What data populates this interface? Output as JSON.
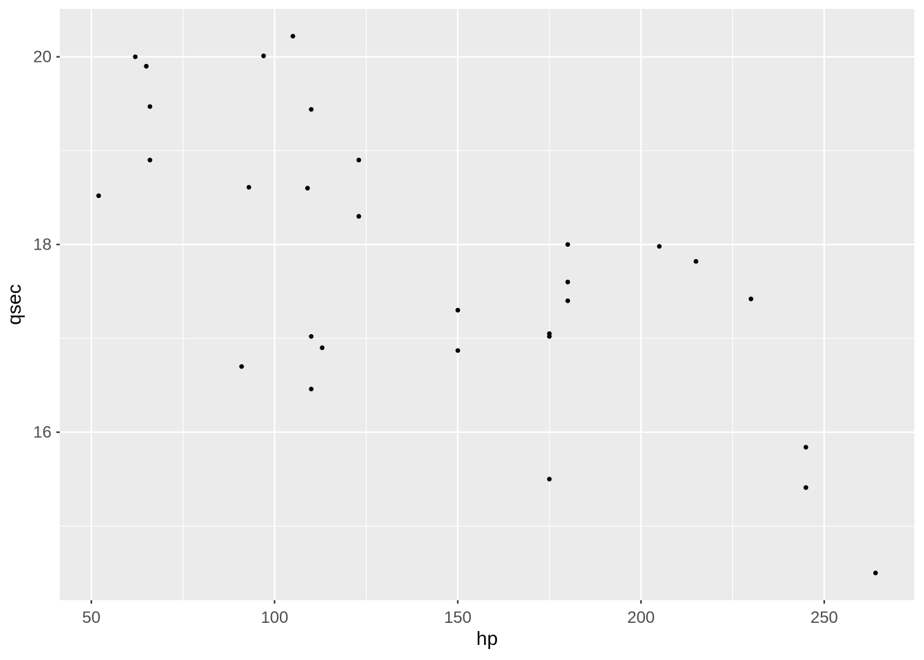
{
  "chart_data": {
    "type": "scatter",
    "title": "",
    "xlabel": "hp",
    "ylabel": "qsec",
    "x_ticks": [
      50,
      100,
      150,
      200,
      250
    ],
    "y_ticks": [
      16,
      18,
      20
    ],
    "x_minor_ticks": [
      75,
      125,
      175,
      225
    ],
    "y_minor_ticks": [
      15,
      17,
      19
    ],
    "xlim": [
      41.4,
      274.6
    ],
    "ylim": [
      14.21,
      20.51
    ],
    "grid": "major-and-minor",
    "legend_position": "none",
    "colors": {
      "panel_background": "#EBEBEB",
      "grid": "#FFFFFF",
      "point": "#000000",
      "tick_mark": "#333333",
      "tick_label": "#4D4D4D",
      "axis_title": "#000000",
      "outer_background": "#FFFFFF"
    },
    "points": [
      [
        52,
        18.52
      ],
      [
        62,
        20.0
      ],
      [
        65,
        19.9
      ],
      [
        66,
        19.47
      ],
      [
        66,
        18.9
      ],
      [
        91,
        16.7
      ],
      [
        93,
        18.61
      ],
      [
        97,
        20.01
      ],
      [
        105,
        20.22
      ],
      [
        109,
        18.6
      ],
      [
        110,
        16.46
      ],
      [
        110,
        17.02
      ],
      [
        110,
        19.44
      ],
      [
        113,
        16.9
      ],
      [
        123,
        18.3
      ],
      [
        123,
        18.9
      ],
      [
        150,
        16.87
      ],
      [
        150,
        17.3
      ],
      [
        175,
        15.5
      ],
      [
        175,
        17.02
      ],
      [
        175,
        17.05
      ],
      [
        180,
        17.4
      ],
      [
        180,
        17.6
      ],
      [
        180,
        18.0
      ],
      [
        205,
        17.98
      ],
      [
        215,
        17.82
      ],
      [
        230,
        17.42
      ],
      [
        245,
        15.41
      ],
      [
        245,
        15.84
      ],
      [
        264,
        14.5
      ]
    ]
  }
}
